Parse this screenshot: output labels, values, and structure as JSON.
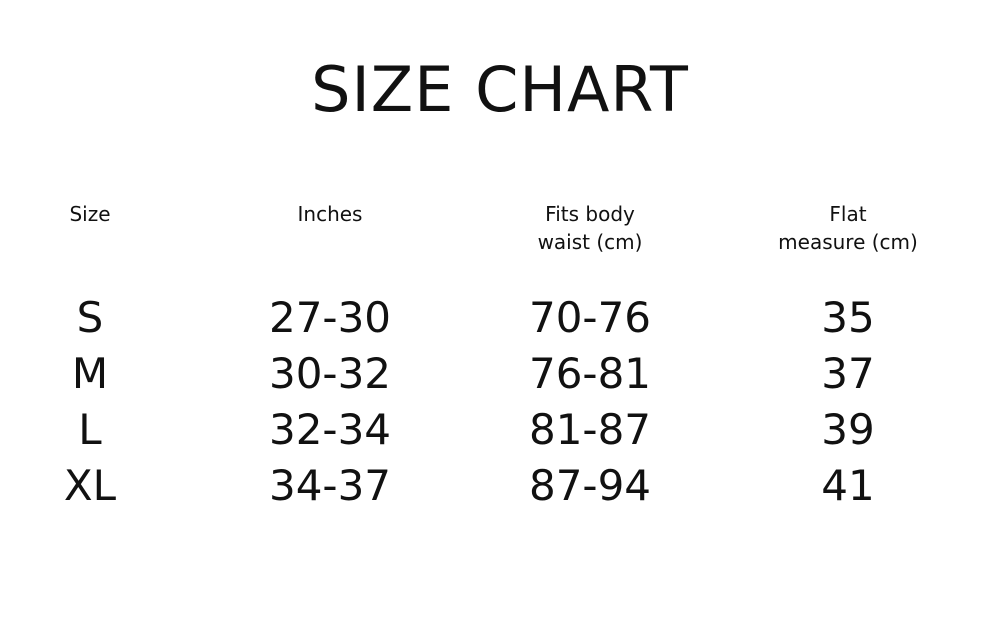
{
  "title": "SIZE CHART",
  "table": {
    "headers": [
      [
        "Size"
      ],
      [
        "Inches"
      ],
      [
        "Fits body",
        "waist (cm)"
      ],
      [
        "Flat",
        "measure (cm)"
      ]
    ],
    "rows": [
      [
        "S",
        "27-30",
        "70-76",
        "35"
      ],
      [
        "M",
        "30-32",
        "76-81",
        "37"
      ],
      [
        "L",
        "32-34",
        "81-87",
        "39"
      ],
      [
        "XL",
        "34-37",
        "87-94",
        "41"
      ]
    ]
  }
}
